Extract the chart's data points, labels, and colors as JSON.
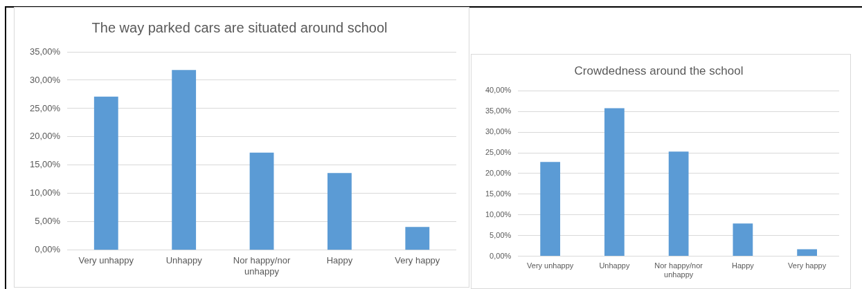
{
  "chart_data": [
    {
      "type": "bar",
      "title": "The way parked cars are situated around school",
      "categories": [
        "Very unhappy",
        "Unhappy",
        "Nor happy/nor unhappy",
        "Happy",
        "Very happy"
      ],
      "values": [
        27.1,
        31.8,
        17.2,
        13.6,
        4.1
      ],
      "color": "#5b9bd5",
      "ylim": [
        0,
        35
      ],
      "yticks": [
        {
          "value": 0,
          "label": "0,00%"
        },
        {
          "value": 5,
          "label": "5,00%"
        },
        {
          "value": 10,
          "label": "10,00%"
        },
        {
          "value": 15,
          "label": "15,00%"
        },
        {
          "value": 20,
          "label": "20,00%"
        },
        {
          "value": 25,
          "label": "25,00%"
        },
        {
          "value": 30,
          "label": "30,00%"
        },
        {
          "value": 35,
          "label": "35,00%"
        }
      ],
      "grid": "y"
    },
    {
      "type": "bar",
      "title": "Crowdedness around the school",
      "categories": [
        "Very unhappy",
        "Unhappy",
        "Nor happy/nor unhappy",
        "Happy",
        "Very happy"
      ],
      "values": [
        22.8,
        35.8,
        25.3,
        7.9,
        1.7
      ],
      "color": "#5b9bd5",
      "ylim": [
        0,
        40
      ],
      "yticks": [
        {
          "value": 0,
          "label": "0,00%"
        },
        {
          "value": 5,
          "label": "5,00%"
        },
        {
          "value": 10,
          "label": "10,00%"
        },
        {
          "value": 15,
          "label": "15,00%"
        },
        {
          "value": 20,
          "label": "20,00%"
        },
        {
          "value": 25,
          "label": "25,00%"
        },
        {
          "value": 30,
          "label": "30,00%"
        },
        {
          "value": 35,
          "label": "35,00%"
        },
        {
          "value": 40,
          "label": "40,00%"
        }
      ],
      "grid": "y"
    }
  ]
}
